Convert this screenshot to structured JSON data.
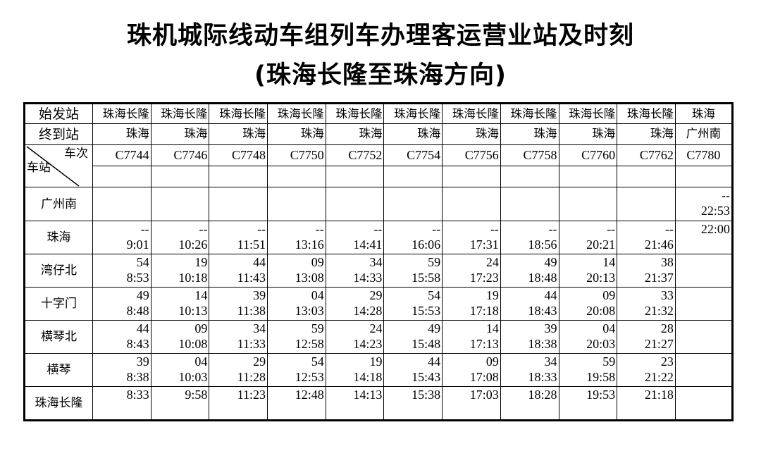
{
  "title": "珠机城际线动车组列车办理客运营业站及时刻",
  "subtitle": "(珠海长隆至珠海方向)",
  "table": {
    "origin_label": "始发站",
    "destination_label": "终到站",
    "train_label": "车次",
    "station_label": "车站",
    "trains": [
      {
        "origin": "珠海长隆",
        "destination": "珠海",
        "number": "C7744"
      },
      {
        "origin": "珠海长隆",
        "destination": "珠海",
        "number": "C7746"
      },
      {
        "origin": "珠海长隆",
        "destination": "珠海",
        "number": "C7748"
      },
      {
        "origin": "珠海长隆",
        "destination": "珠海",
        "number": "C7750"
      },
      {
        "origin": "珠海长隆",
        "destination": "珠海",
        "number": "C7752"
      },
      {
        "origin": "珠海长隆",
        "destination": "珠海",
        "number": "C7754"
      },
      {
        "origin": "珠海长隆",
        "destination": "珠海",
        "number": "C7756"
      },
      {
        "origin": "珠海长隆",
        "destination": "珠海",
        "number": "C7758"
      },
      {
        "origin": "珠海长隆",
        "destination": "珠海",
        "number": "C7760"
      },
      {
        "origin": "珠海长隆",
        "destination": "珠海",
        "number": "C7762"
      },
      {
        "origin": "珠海",
        "destination": "广州南",
        "number": "C7780"
      }
    ],
    "stations": [
      {
        "name": "广州南",
        "times": [
          [],
          [],
          [],
          [],
          [],
          [],
          [],
          [],
          [],
          [],
          [
            "--",
            "22:53"
          ]
        ]
      },
      {
        "name": "珠海",
        "times": [
          [
            "--",
            "9:01"
          ],
          [
            "--",
            "10:26"
          ],
          [
            "--",
            "11:51"
          ],
          [
            "--",
            "13:16"
          ],
          [
            "--",
            "14:41"
          ],
          [
            "--",
            "16:06"
          ],
          [
            "--",
            "17:31"
          ],
          [
            "--",
            "18:56"
          ],
          [
            "--",
            "20:21"
          ],
          [
            "--",
            "21:46"
          ],
          [
            "22:00"
          ]
        ]
      },
      {
        "name": "湾仔北",
        "times": [
          [
            "54",
            "8:53"
          ],
          [
            "19",
            "10:18"
          ],
          [
            "44",
            "11:43"
          ],
          [
            "09",
            "13:08"
          ],
          [
            "34",
            "14:33"
          ],
          [
            "59",
            "15:58"
          ],
          [
            "24",
            "17:23"
          ],
          [
            "49",
            "18:48"
          ],
          [
            "14",
            "20:13"
          ],
          [
            "38",
            "21:37"
          ],
          []
        ]
      },
      {
        "name": "十字门",
        "times": [
          [
            "49",
            "8:48"
          ],
          [
            "14",
            "10:13"
          ],
          [
            "39",
            "11:38"
          ],
          [
            "04",
            "13:03"
          ],
          [
            "29",
            "14:28"
          ],
          [
            "54",
            "15:53"
          ],
          [
            "19",
            "17:18"
          ],
          [
            "44",
            "18:43"
          ],
          [
            "09",
            "20:08"
          ],
          [
            "33",
            "21:32"
          ],
          []
        ]
      },
      {
        "name": "横琴北",
        "times": [
          [
            "44",
            "8:43"
          ],
          [
            "09",
            "10:08"
          ],
          [
            "34",
            "11:33"
          ],
          [
            "59",
            "12:58"
          ],
          [
            "24",
            "14:23"
          ],
          [
            "49",
            "15:48"
          ],
          [
            "14",
            "17:13"
          ],
          [
            "39",
            "18:38"
          ],
          [
            "04",
            "20:03"
          ],
          [
            "28",
            "21:27"
          ],
          []
        ]
      },
      {
        "name": "横琴",
        "times": [
          [
            "39",
            "8:38"
          ],
          [
            "04",
            "10:03"
          ],
          [
            "29",
            "11:28"
          ],
          [
            "54",
            "12:53"
          ],
          [
            "19",
            "14:18"
          ],
          [
            "44",
            "15:43"
          ],
          [
            "09",
            "17:08"
          ],
          [
            "34",
            "18:33"
          ],
          [
            "59",
            "19:58"
          ],
          [
            "23",
            "21:22"
          ],
          []
        ]
      },
      {
        "name": "珠海长隆",
        "times": [
          [
            "8:33"
          ],
          [
            "9:58"
          ],
          [
            "11:23"
          ],
          [
            "12:48"
          ],
          [
            "14:13"
          ],
          [
            "15:38"
          ],
          [
            "17:03"
          ],
          [
            "18:28"
          ],
          [
            "19:53"
          ],
          [
            "21:18"
          ],
          []
        ]
      }
    ]
  }
}
